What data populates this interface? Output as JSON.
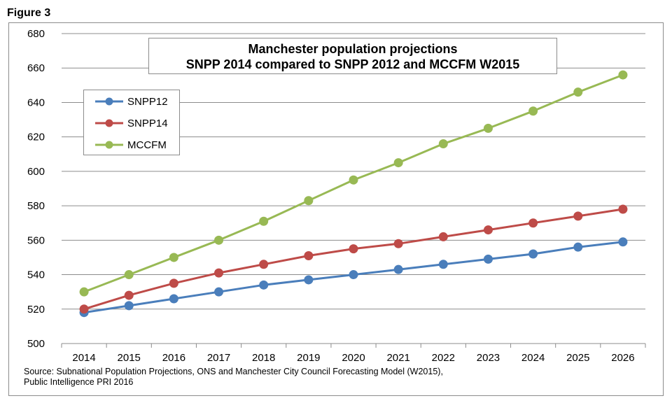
{
  "figure_label": "Figure 3",
  "source_lines": [
    "Source: Subnational Population Projections, ONS and Manchester City Council Forecasting  Model (W2015),",
    "Public Intelligence PRI 2016"
  ],
  "chart_data": {
    "type": "line",
    "title": [
      "Manchester population projections",
      "SNPP 2014 compared to SNPP 2012 and MCCFM W2015"
    ],
    "xlabel": "",
    "ylabel": "",
    "categories": [
      "2014",
      "2015",
      "2016",
      "2017",
      "2018",
      "2019",
      "2020",
      "2021",
      "2022",
      "2023",
      "2024",
      "2025",
      "2026"
    ],
    "ylim": [
      500,
      680
    ],
    "yticks": [
      500,
      520,
      540,
      560,
      580,
      600,
      620,
      640,
      660,
      680
    ],
    "grid": "horizontal",
    "legend_position": "top-left",
    "series": [
      {
        "name": "SNPP12",
        "color": "#4a7ebb",
        "values": [
          518,
          522,
          526,
          530,
          534,
          537,
          540,
          543,
          546,
          549,
          552,
          556,
          559
        ]
      },
      {
        "name": "SNPP14",
        "color": "#be4b48",
        "values": [
          520,
          528,
          535,
          541,
          546,
          551,
          555,
          558,
          562,
          566,
          570,
          574,
          578
        ]
      },
      {
        "name": "MCCFM",
        "color": "#98b954",
        "values": [
          530,
          540,
          550,
          560,
          571,
          583,
          595,
          605,
          616,
          625,
          635,
          646,
          656
        ]
      }
    ]
  }
}
